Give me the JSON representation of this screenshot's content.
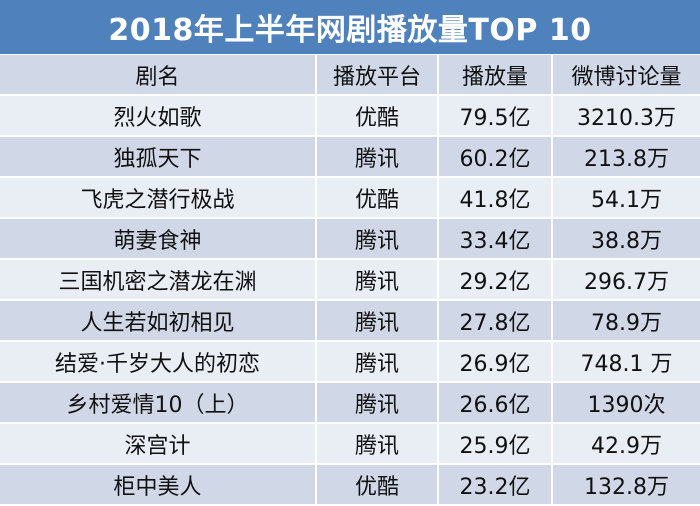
{
  "title": "2018年上半年网剧播放量TOP 10",
  "headers": [
    "剧名",
    "播放平台",
    "播放量",
    "微博讨论量"
  ],
  "rows": [
    {
      "name": "烈火如歌",
      "platform": "优酷",
      "plays": "79.5亿",
      "weibo": "3210.3万"
    },
    {
      "name": "独孤天下",
      "platform": "腾讯",
      "plays": "60.2亿",
      "weibo": "213.8万"
    },
    {
      "name": "飞虎之潜行极战",
      "platform": "优酷",
      "plays": "41.8亿",
      "weibo": "54.1万"
    },
    {
      "name": "萌妻食神",
      "platform": "腾讯",
      "plays": "33.4亿",
      "weibo": "38.8万"
    },
    {
      "name": "三国机密之潜龙在渊",
      "platform": "腾讯",
      "plays": "29.2亿",
      "weibo": "296.7万"
    },
    {
      "name": "人生若如初相见",
      "platform": "腾讯",
      "plays": "27.8亿",
      "weibo": "78.9万"
    },
    {
      "name": "结爱·千岁大人的初恋",
      "platform": "腾讯",
      "plays": "26.9亿",
      "weibo": "748.1 万"
    },
    {
      "name": "乡村爱情10（上）",
      "platform": "腾讯",
      "plays": "26.6亿",
      "weibo": "1390次"
    },
    {
      "name": "深宫计",
      "platform": "腾讯",
      "plays": "25.9亿",
      "weibo": "42.9万"
    },
    {
      "name": "柜中美人",
      "platform": "优酷",
      "plays": "23.2亿",
      "weibo": "132.8万"
    }
  ],
  "colors": {
    "title_bg": "#4f81bd",
    "header_bg": "#d0d8e8",
    "row_light": "#e9edf4",
    "row_dark": "#d0d8e8"
  }
}
